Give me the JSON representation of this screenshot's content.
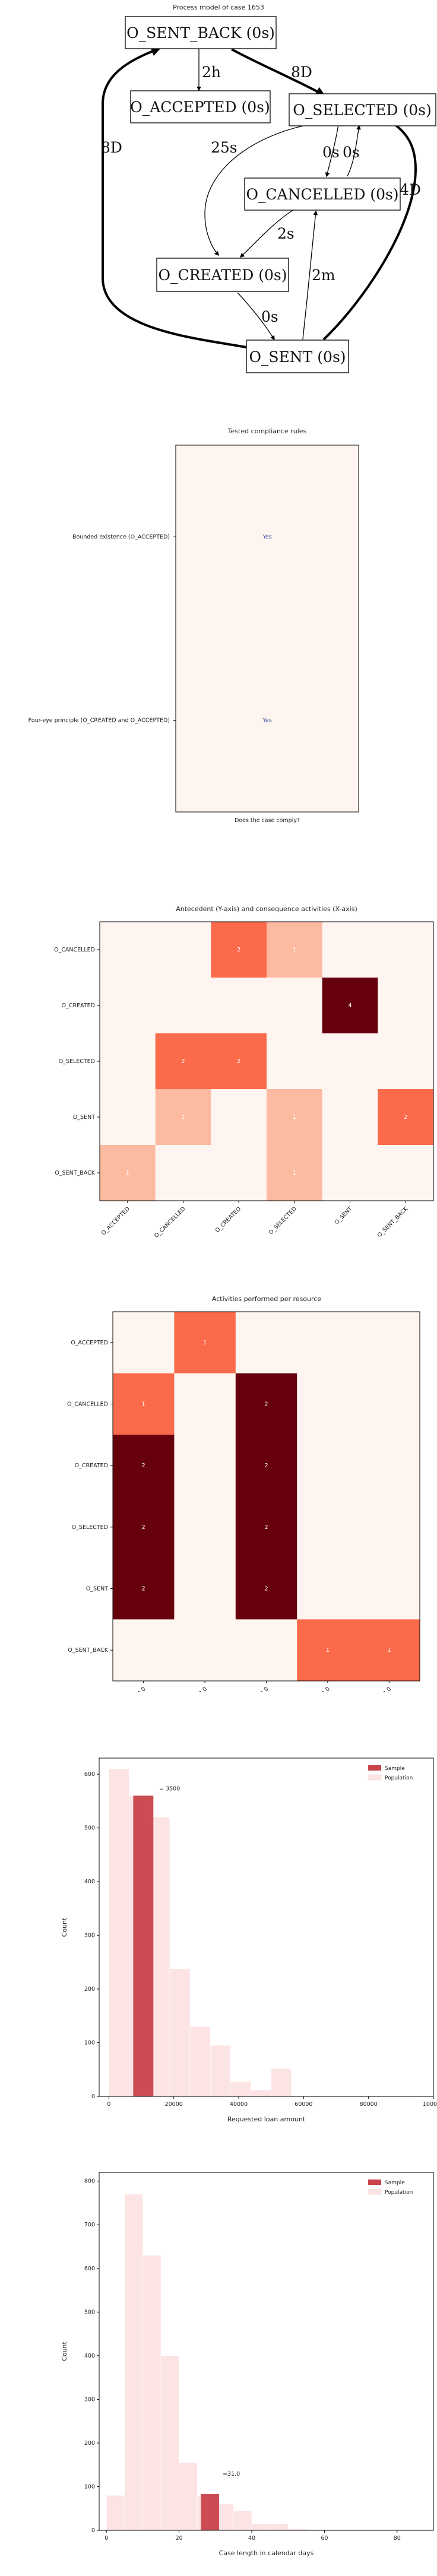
{
  "process_model": {
    "title": "Process model of case 1653",
    "nodes": [
      {
        "id": "sentback",
        "label": "O_SENT_BACK (0s)"
      },
      {
        "id": "accepted",
        "label": "O_ACCEPTED (0s)"
      },
      {
        "id": "selected",
        "label": "O_SELECTED (0s)"
      },
      {
        "id": "cancelled",
        "label": "O_CANCELLED (0s)"
      },
      {
        "id": "created",
        "label": "O_CREATED (0s)"
      },
      {
        "id": "sent",
        "label": "O_SENT (0s)"
      }
    ],
    "edges": [
      {
        "from": "sentback",
        "to": "accepted",
        "label": "2h"
      },
      {
        "from": "sentback",
        "to": "selected",
        "label": "8D"
      },
      {
        "from": "sent",
        "to": "sentback",
        "label": "8D"
      },
      {
        "from": "selected",
        "to": "created",
        "label": "25s"
      },
      {
        "from": "selected",
        "to": "cancelled",
        "label": "0s"
      },
      {
        "from": "cancelled",
        "to": "selected",
        "label": "0s"
      },
      {
        "from": "cancelled",
        "to": "created",
        "label": "2s"
      },
      {
        "from": "created",
        "to": "sent",
        "label": "0s"
      },
      {
        "from": "sent",
        "to": "cancelled",
        "label": "2m"
      },
      {
        "from": "sent",
        "to": "selected",
        "label": "4D"
      }
    ]
  },
  "chart_data": [
    {
      "type": "table",
      "title": "Tested compliance rules",
      "xlabel": "Does the case comply?",
      "rows": [
        "Bounded existence (O_ACCEPTED)",
        "Four-eye principle (O_CREATED and O_ACCEPTED)"
      ],
      "values": [
        "Yes",
        "Yes"
      ]
    },
    {
      "type": "heatmap",
      "title": "Antecedent (Y-axis) and consequence activities (X-axis)",
      "x": [
        "O_ACCEPTED",
        "O_CANCELLED",
        "O_CREATED",
        "O_SELECTED",
        "O_SENT",
        "O_SENT_BACK"
      ],
      "y": [
        "O_CANCELLED",
        "O_CREATED",
        "O_SELECTED",
        "O_SENT",
        "O_SENT_BACK"
      ],
      "values": [
        [
          null,
          null,
          2,
          1,
          null,
          null
        ],
        [
          null,
          null,
          null,
          null,
          4,
          null
        ],
        [
          null,
          2,
          2,
          null,
          null,
          null
        ],
        [
          null,
          1,
          null,
          1,
          null,
          2
        ],
        [
          1,
          null,
          null,
          1,
          null,
          null
        ]
      ],
      "vmax": 4
    },
    {
      "type": "heatmap",
      "title": "Activities performed per resource",
      "x": [
        "10913.0",
        "11000.0",
        "11049.0",
        "11203.0",
        "10972.0"
      ],
      "y": [
        "O_ACCEPTED",
        "O_CANCELLED",
        "O_CREATED",
        "O_SELECTED",
        "O_SENT",
        "O_SENT_BACK"
      ],
      "values": [
        [
          null,
          1,
          null,
          null,
          null
        ],
        [
          1,
          null,
          2,
          null,
          null
        ],
        [
          2,
          null,
          2,
          null,
          null
        ],
        [
          2,
          null,
          2,
          null,
          null
        ],
        [
          2,
          null,
          2,
          null,
          null
        ],
        [
          null,
          null,
          null,
          1,
          1
        ]
      ],
      "vmax": 2
    },
    {
      "type": "bar",
      "title": "",
      "xlabel": "Requested loan amount",
      "ylabel": "Count",
      "xlim": [
        -3000,
        100000
      ],
      "ylim": [
        0,
        630
      ],
      "xticks": [
        0,
        20000,
        40000,
        60000,
        80000,
        100000
      ],
      "yticks": [
        0,
        100,
        200,
        300,
        400,
        500,
        600
      ],
      "bin_width": 6250,
      "population": {
        "name": "Population",
        "bins_start": [
          0,
          6250,
          12500,
          18750,
          25000,
          31250,
          37500,
          43750,
          50000
        ],
        "counts": [
          610,
          560,
          520,
          238,
          130,
          95,
          28,
          12,
          52
        ]
      },
      "sample": {
        "name": "Sample",
        "bin_start": 7500,
        "bin_end": 13700,
        "count": 560
      },
      "annotation": "= 3500",
      "annotation_pos": [
        15500,
        570
      ],
      "legend": "top-right",
      "colors": {
        "sample": "#c9434b",
        "population": "#fce4e4"
      }
    },
    {
      "type": "bar",
      "title": "",
      "xlabel": "Case length in calendar days",
      "ylabel": "Count",
      "xlim": [
        -2,
        90
      ],
      "ylim": [
        0,
        820
      ],
      "xticks": [
        0,
        20,
        40,
        60,
        80
      ],
      "yticks": [
        0,
        100,
        200,
        300,
        400,
        500,
        600,
        700,
        800
      ],
      "bin_width": 5,
      "population": {
        "name": "Population",
        "bins_start": [
          0,
          5,
          10,
          15,
          20,
          25,
          30,
          35,
          40,
          45,
          50,
          55
        ],
        "counts": [
          80,
          770,
          630,
          400,
          155,
          80,
          60,
          45,
          15,
          15,
          3,
          0
        ]
      },
      "sample": {
        "name": "Sample",
        "bin_start": 26,
        "bin_end": 31,
        "count": 83
      },
      "annotation": "=31.0",
      "annotation_pos": [
        32,
        125
      ],
      "legend": "top-right",
      "colors": {
        "sample": "#c9434b",
        "population": "#fce4e4"
      }
    }
  ]
}
